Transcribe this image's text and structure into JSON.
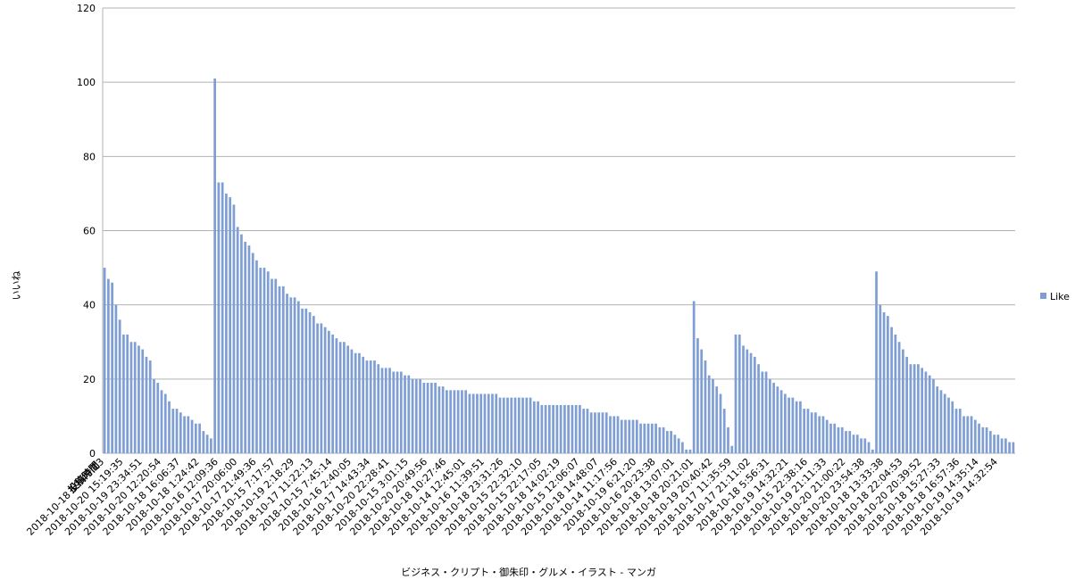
{
  "chart_data": {
    "type": "bar",
    "x_field": "投稿時間",
    "x_label": "ビジネス・クリプト・御朱印・グルメ・イラスト - マンガ",
    "y_label": "いいね",
    "ylim": [
      0,
      120
    ],
    "yticks": [
      0,
      20,
      40,
      60,
      80,
      100,
      120
    ],
    "grid": true,
    "legend": "right",
    "categories": [
      "2018-10-18 19:49:13",
      null,
      null,
      null,
      null,
      "2018-10-20 15:19:35",
      null,
      null,
      null,
      null,
      "2018-10-19 23:34:51",
      null,
      null,
      null,
      null,
      "2018-10-20 12:20:54",
      null,
      null,
      null,
      null,
      "2018-10-18 16:06:37",
      null,
      null,
      null,
      null,
      "2018-10-18 1:24:42",
      null,
      null,
      null,
      null,
      "2018-10-16 12:09:36",
      null,
      null,
      null,
      null,
      "2018-10-17 20:06:00",
      null,
      null,
      null,
      null,
      "2018-10-17 21:49:36",
      null,
      null,
      null,
      null,
      "2018-10-15 7:17:57",
      null,
      null,
      null,
      null,
      "2018-10-19 2:18:29",
      null,
      null,
      null,
      null,
      "2018-10-17 11:22:13",
      null,
      null,
      null,
      null,
      "2018-10-15 7:45:14",
      null,
      null,
      null,
      null,
      "2018-10-16 2:40:05",
      null,
      null,
      null,
      null,
      "2018-10-17 14:43:34",
      null,
      null,
      null,
      null,
      "2018-10-20 22:28:41",
      null,
      null,
      null,
      null,
      "2018-10-15 3:01:15",
      null,
      null,
      null,
      null,
      "2018-10-20 20:49:56",
      null,
      null,
      null,
      null,
      "2018-10-18 10:27:46",
      null,
      null,
      null,
      null,
      "2018-10-14 12:45:01",
      null,
      null,
      null,
      null,
      "2018-10-16 11:39:51",
      null,
      null,
      null,
      null,
      "2018-10-18 23:31:26",
      null,
      null,
      null,
      null,
      "2018-10-15 22:32:10",
      null,
      null,
      null,
      null,
      "2018-10-15 22:17:05",
      null,
      null,
      null,
      null,
      "2018-10-18 14:02:19",
      null,
      null,
      null,
      null,
      "2018-10-15 12:06:07",
      null,
      null,
      null,
      null,
      "2018-10-18 14:48:07",
      null,
      null,
      null,
      null,
      "2018-10-14 11:17:56",
      null,
      null,
      null,
      null,
      "2018-10-19 6:21:20",
      null,
      null,
      null,
      null,
      "2018-10-16 20:23:38",
      null,
      null,
      null,
      null,
      "2018-10-18 13:07:01",
      null,
      null,
      null,
      null,
      "2018-10-18 20:21:01",
      null,
      null,
      null,
      null,
      "2018-10-19 20:40:42",
      null,
      null,
      null,
      null,
      "2018-10-17 11:35:59",
      null,
      null,
      null,
      null,
      "2018-10-17 21:11:02",
      null,
      null,
      null,
      null,
      "2018-10-18 5:56:31",
      null,
      null,
      null,
      null,
      "2018-10-19 14:32:21",
      null,
      null,
      null,
      null,
      "2018-10-15 22:38:16",
      null,
      null,
      null,
      null,
      "2018-10-19 21:11:33",
      null,
      null,
      null,
      null,
      "2018-10-20 21:00:22",
      null,
      null,
      null,
      null,
      "2018-10-20 23:54:38",
      null,
      null,
      null,
      null,
      "2018-10-18 13:33:38",
      null,
      null,
      null,
      null,
      "2018-10-18 22:04:53",
      null,
      null,
      null,
      null,
      "2018-10-20 20:39:52",
      null,
      null,
      null,
      null,
      "2018-10-18 15:27:33",
      null,
      null,
      null,
      null,
      "2018-10-18 16:57:36",
      null,
      null,
      null,
      null,
      "2018-10-19 14:35:14",
      null,
      null,
      null,
      null,
      "2018-10-19 14:32:54",
      null,
      null,
      null,
      null
    ],
    "series": [
      {
        "name": "Like",
        "color": "#7f9fd4",
        "values": [
          50,
          47,
          46,
          40,
          36,
          32,
          32,
          30,
          30,
          29,
          28,
          26,
          25,
          20,
          19,
          17,
          16,
          14,
          12,
          12,
          11,
          10,
          10,
          9,
          8,
          8,
          6,
          5,
          4,
          101,
          73,
          73,
          70,
          69,
          67,
          61,
          59,
          57,
          56,
          54,
          52,
          50,
          50,
          49,
          47,
          47,
          45,
          45,
          43,
          42,
          42,
          41,
          39,
          39,
          38,
          37,
          35,
          35,
          34,
          33,
          32,
          31,
          30,
          30,
          29,
          28,
          27,
          27,
          26,
          25,
          25,
          25,
          24,
          23,
          23,
          23,
          22,
          22,
          22,
          21,
          21,
          20,
          20,
          20,
          19,
          19,
          19,
          19,
          18,
          18,
          17,
          17,
          17,
          17,
          17,
          17,
          16,
          16,
          16,
          16,
          16,
          16,
          16,
          16,
          15,
          15,
          15,
          15,
          15,
          15,
          15,
          15,
          15,
          14,
          14,
          13,
          13,
          13,
          13,
          13,
          13,
          13,
          13,
          13,
          13,
          13,
          12,
          12,
          11,
          11,
          11,
          11,
          11,
          10,
          10,
          10,
          9,
          9,
          9,
          9,
          9,
          8,
          8,
          8,
          8,
          8,
          7,
          7,
          6,
          6,
          5,
          4,
          3,
          1,
          1,
          41,
          31,
          28,
          25,
          21,
          20,
          18,
          16,
          12,
          7,
          2,
          32,
          32,
          29,
          28,
          27,
          26,
          24,
          22,
          22,
          20,
          19,
          18,
          17,
          16,
          15,
          15,
          14,
          14,
          12,
          12,
          11,
          11,
          10,
          10,
          9,
          8,
          8,
          7,
          7,
          6,
          6,
          5,
          5,
          4,
          4,
          3,
          1,
          49,
          40,
          38,
          37,
          34,
          32,
          30,
          28,
          26,
          24,
          24,
          24,
          23,
          22,
          21,
          20,
          18,
          17,
          16,
          15,
          14,
          12,
          12,
          10,
          10,
          10,
          9,
          8,
          7,
          7,
          6,
          5,
          5,
          4,
          4,
          3,
          3
        ]
      }
    ]
  }
}
